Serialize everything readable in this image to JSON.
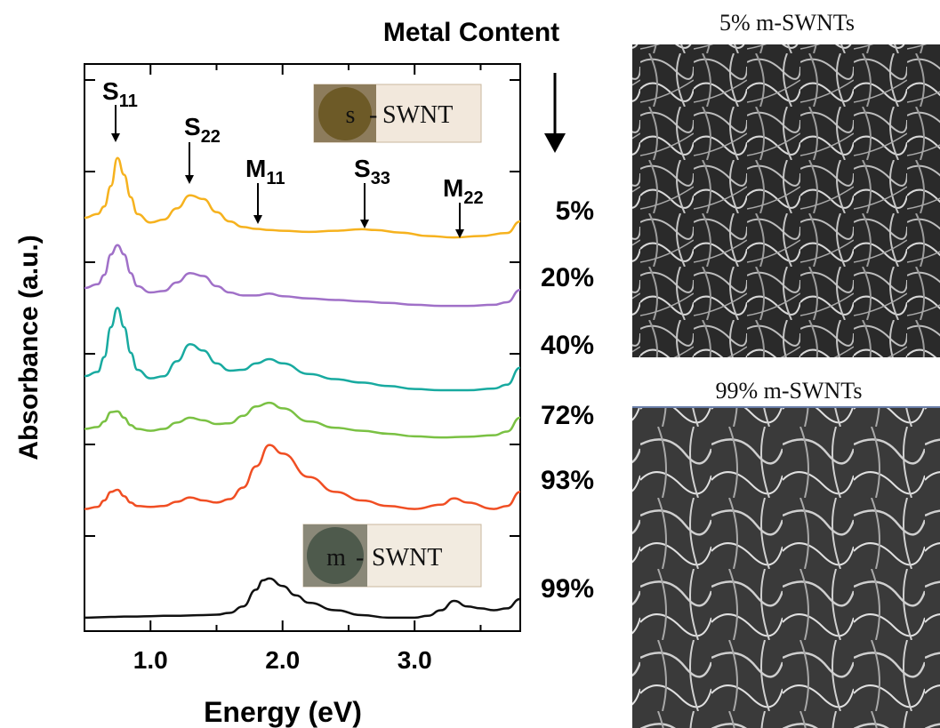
{
  "chart_data": {
    "type": "line",
    "title": "Metal Content",
    "xlabel": "Energy (eV)",
    "ylabel": "Absorbance (a.u.)",
    "xlim": [
      0.5,
      3.8
    ],
    "x_ticks": [
      "1.0",
      "2.0",
      "3.0"
    ],
    "grid": false,
    "peak_labels": [
      {
        "name": "S",
        "sub": "11",
        "x": 0.75
      },
      {
        "name": "S",
        "sub": "22",
        "x": 1.32
      },
      {
        "name": "M",
        "sub": "11",
        "x": 1.85
      },
      {
        "name": "S",
        "sub": "33",
        "x": 2.68
      },
      {
        "name": "M",
        "sub": "22",
        "x": 3.37
      }
    ],
    "series": [
      {
        "name": "5%",
        "color": "#f6b21e",
        "x": [
          0.5,
          0.6,
          0.65,
          0.7,
          0.75,
          0.8,
          0.85,
          0.9,
          1.0,
          1.1,
          1.2,
          1.3,
          1.4,
          1.5,
          1.6,
          1.7,
          1.8,
          1.9,
          2.0,
          2.2,
          2.4,
          2.6,
          2.7,
          2.9,
          3.1,
          3.3,
          3.5,
          3.7,
          3.8
        ],
        "y": [
          0.55,
          0.65,
          0.85,
          1.4,
          2.15,
          1.7,
          1.1,
          0.65,
          0.42,
          0.5,
          0.8,
          1.15,
          1.05,
          0.7,
          0.45,
          0.3,
          0.25,
          0.22,
          0.2,
          0.17,
          0.2,
          0.24,
          0.22,
          0.15,
          0.06,
          0.02,
          0.06,
          0.14,
          0.45
        ]
      },
      {
        "name": "20%",
        "color": "#a070c8",
        "x": [
          0.5,
          0.6,
          0.65,
          0.7,
          0.75,
          0.8,
          0.85,
          0.9,
          1.0,
          1.1,
          1.2,
          1.3,
          1.4,
          1.5,
          1.6,
          1.7,
          1.8,
          1.9,
          2.0,
          2.2,
          2.4,
          2.6,
          2.8,
          3.0,
          3.2,
          3.4,
          3.6,
          3.7,
          3.8
        ],
        "y": [
          0.5,
          0.6,
          0.85,
          1.4,
          1.65,
          1.4,
          0.9,
          0.55,
          0.38,
          0.42,
          0.65,
          0.9,
          0.82,
          0.55,
          0.38,
          0.3,
          0.3,
          0.35,
          0.28,
          0.22,
          0.18,
          0.14,
          0.1,
          0.05,
          0.02,
          0.02,
          0.05,
          0.12,
          0.45
        ]
      },
      {
        "name": "40%",
        "color": "#18aaa0",
        "x": [
          0.5,
          0.6,
          0.65,
          0.7,
          0.75,
          0.8,
          0.85,
          0.9,
          1.0,
          1.1,
          1.2,
          1.3,
          1.4,
          1.5,
          1.6,
          1.7,
          1.8,
          1.9,
          2.0,
          2.2,
          2.4,
          2.6,
          2.8,
          3.0,
          3.2,
          3.4,
          3.6,
          3.7,
          3.8
        ],
        "y": [
          0.35,
          0.45,
          0.8,
          1.5,
          1.95,
          1.5,
          0.9,
          0.5,
          0.3,
          0.35,
          0.7,
          1.1,
          0.95,
          0.65,
          0.48,
          0.5,
          0.65,
          0.75,
          0.65,
          0.4,
          0.28,
          0.2,
          0.12,
          0.05,
          0.02,
          0.02,
          0.06,
          0.15,
          0.55
        ]
      },
      {
        "name": "72%",
        "color": "#7ac143",
        "x": [
          0.5,
          0.6,
          0.65,
          0.7,
          0.75,
          0.8,
          0.85,
          0.9,
          1.0,
          1.1,
          1.2,
          1.3,
          1.4,
          1.5,
          1.6,
          1.7,
          1.8,
          1.9,
          2.0,
          2.2,
          2.4,
          2.6,
          2.8,
          3.0,
          3.2,
          3.4,
          3.6,
          3.7,
          3.8
        ],
        "y": [
          0.25,
          0.3,
          0.45,
          0.7,
          0.72,
          0.55,
          0.35,
          0.25,
          0.2,
          0.25,
          0.42,
          0.55,
          0.48,
          0.38,
          0.4,
          0.6,
          0.85,
          0.95,
          0.8,
          0.45,
          0.28,
          0.2,
          0.12,
          0.05,
          0.02,
          0.04,
          0.08,
          0.18,
          0.55
        ]
      },
      {
        "name": "93%",
        "color": "#f04e23",
        "x": [
          0.5,
          0.6,
          0.65,
          0.7,
          0.75,
          0.8,
          0.85,
          0.9,
          1.0,
          1.1,
          1.2,
          1.3,
          1.4,
          1.5,
          1.6,
          1.7,
          1.8,
          1.9,
          2.0,
          2.2,
          2.4,
          2.6,
          2.8,
          3.0,
          3.2,
          3.3,
          3.4,
          3.6,
          3.7,
          3.8
        ],
        "y": [
          0.05,
          0.1,
          0.25,
          0.45,
          0.5,
          0.35,
          0.2,
          0.12,
          0.1,
          0.12,
          0.22,
          0.32,
          0.25,
          0.2,
          0.28,
          0.55,
          1.05,
          1.55,
          1.35,
          0.8,
          0.45,
          0.25,
          0.12,
          0.05,
          0.15,
          0.3,
          0.2,
          0.05,
          0.12,
          0.45
        ]
      },
      {
        "name": "99%",
        "color": "#111111",
        "x": [
          0.5,
          0.6,
          0.7,
          0.8,
          0.9,
          1.0,
          1.1,
          1.2,
          1.3,
          1.4,
          1.5,
          1.6,
          1.7,
          1.8,
          1.85,
          1.9,
          2.0,
          2.1,
          2.2,
          2.4,
          2.6,
          2.8,
          3.0,
          3.1,
          3.2,
          3.3,
          3.4,
          3.5,
          3.6,
          3.7,
          3.8
        ],
        "y": [
          0.05,
          0.06,
          0.07,
          0.08,
          0.08,
          0.09,
          0.1,
          0.1,
          0.11,
          0.12,
          0.13,
          0.18,
          0.35,
          0.8,
          1.05,
          1.1,
          0.9,
          0.65,
          0.45,
          0.25,
          0.12,
          0.05,
          0.05,
          0.1,
          0.25,
          0.5,
          0.35,
          0.3,
          0.25,
          0.3,
          0.55
        ]
      }
    ]
  },
  "insets": [
    {
      "prefix": "s",
      "label": "SWNT",
      "disk_color": "#6d5a27"
    },
    {
      "prefix": "m",
      "label": "SWNT",
      "disk_color": "#4e5a4c"
    }
  ],
  "micrographs": [
    {
      "title": "5% m-SWNTs"
    },
    {
      "title": "99% m-SWNTs"
    }
  ]
}
